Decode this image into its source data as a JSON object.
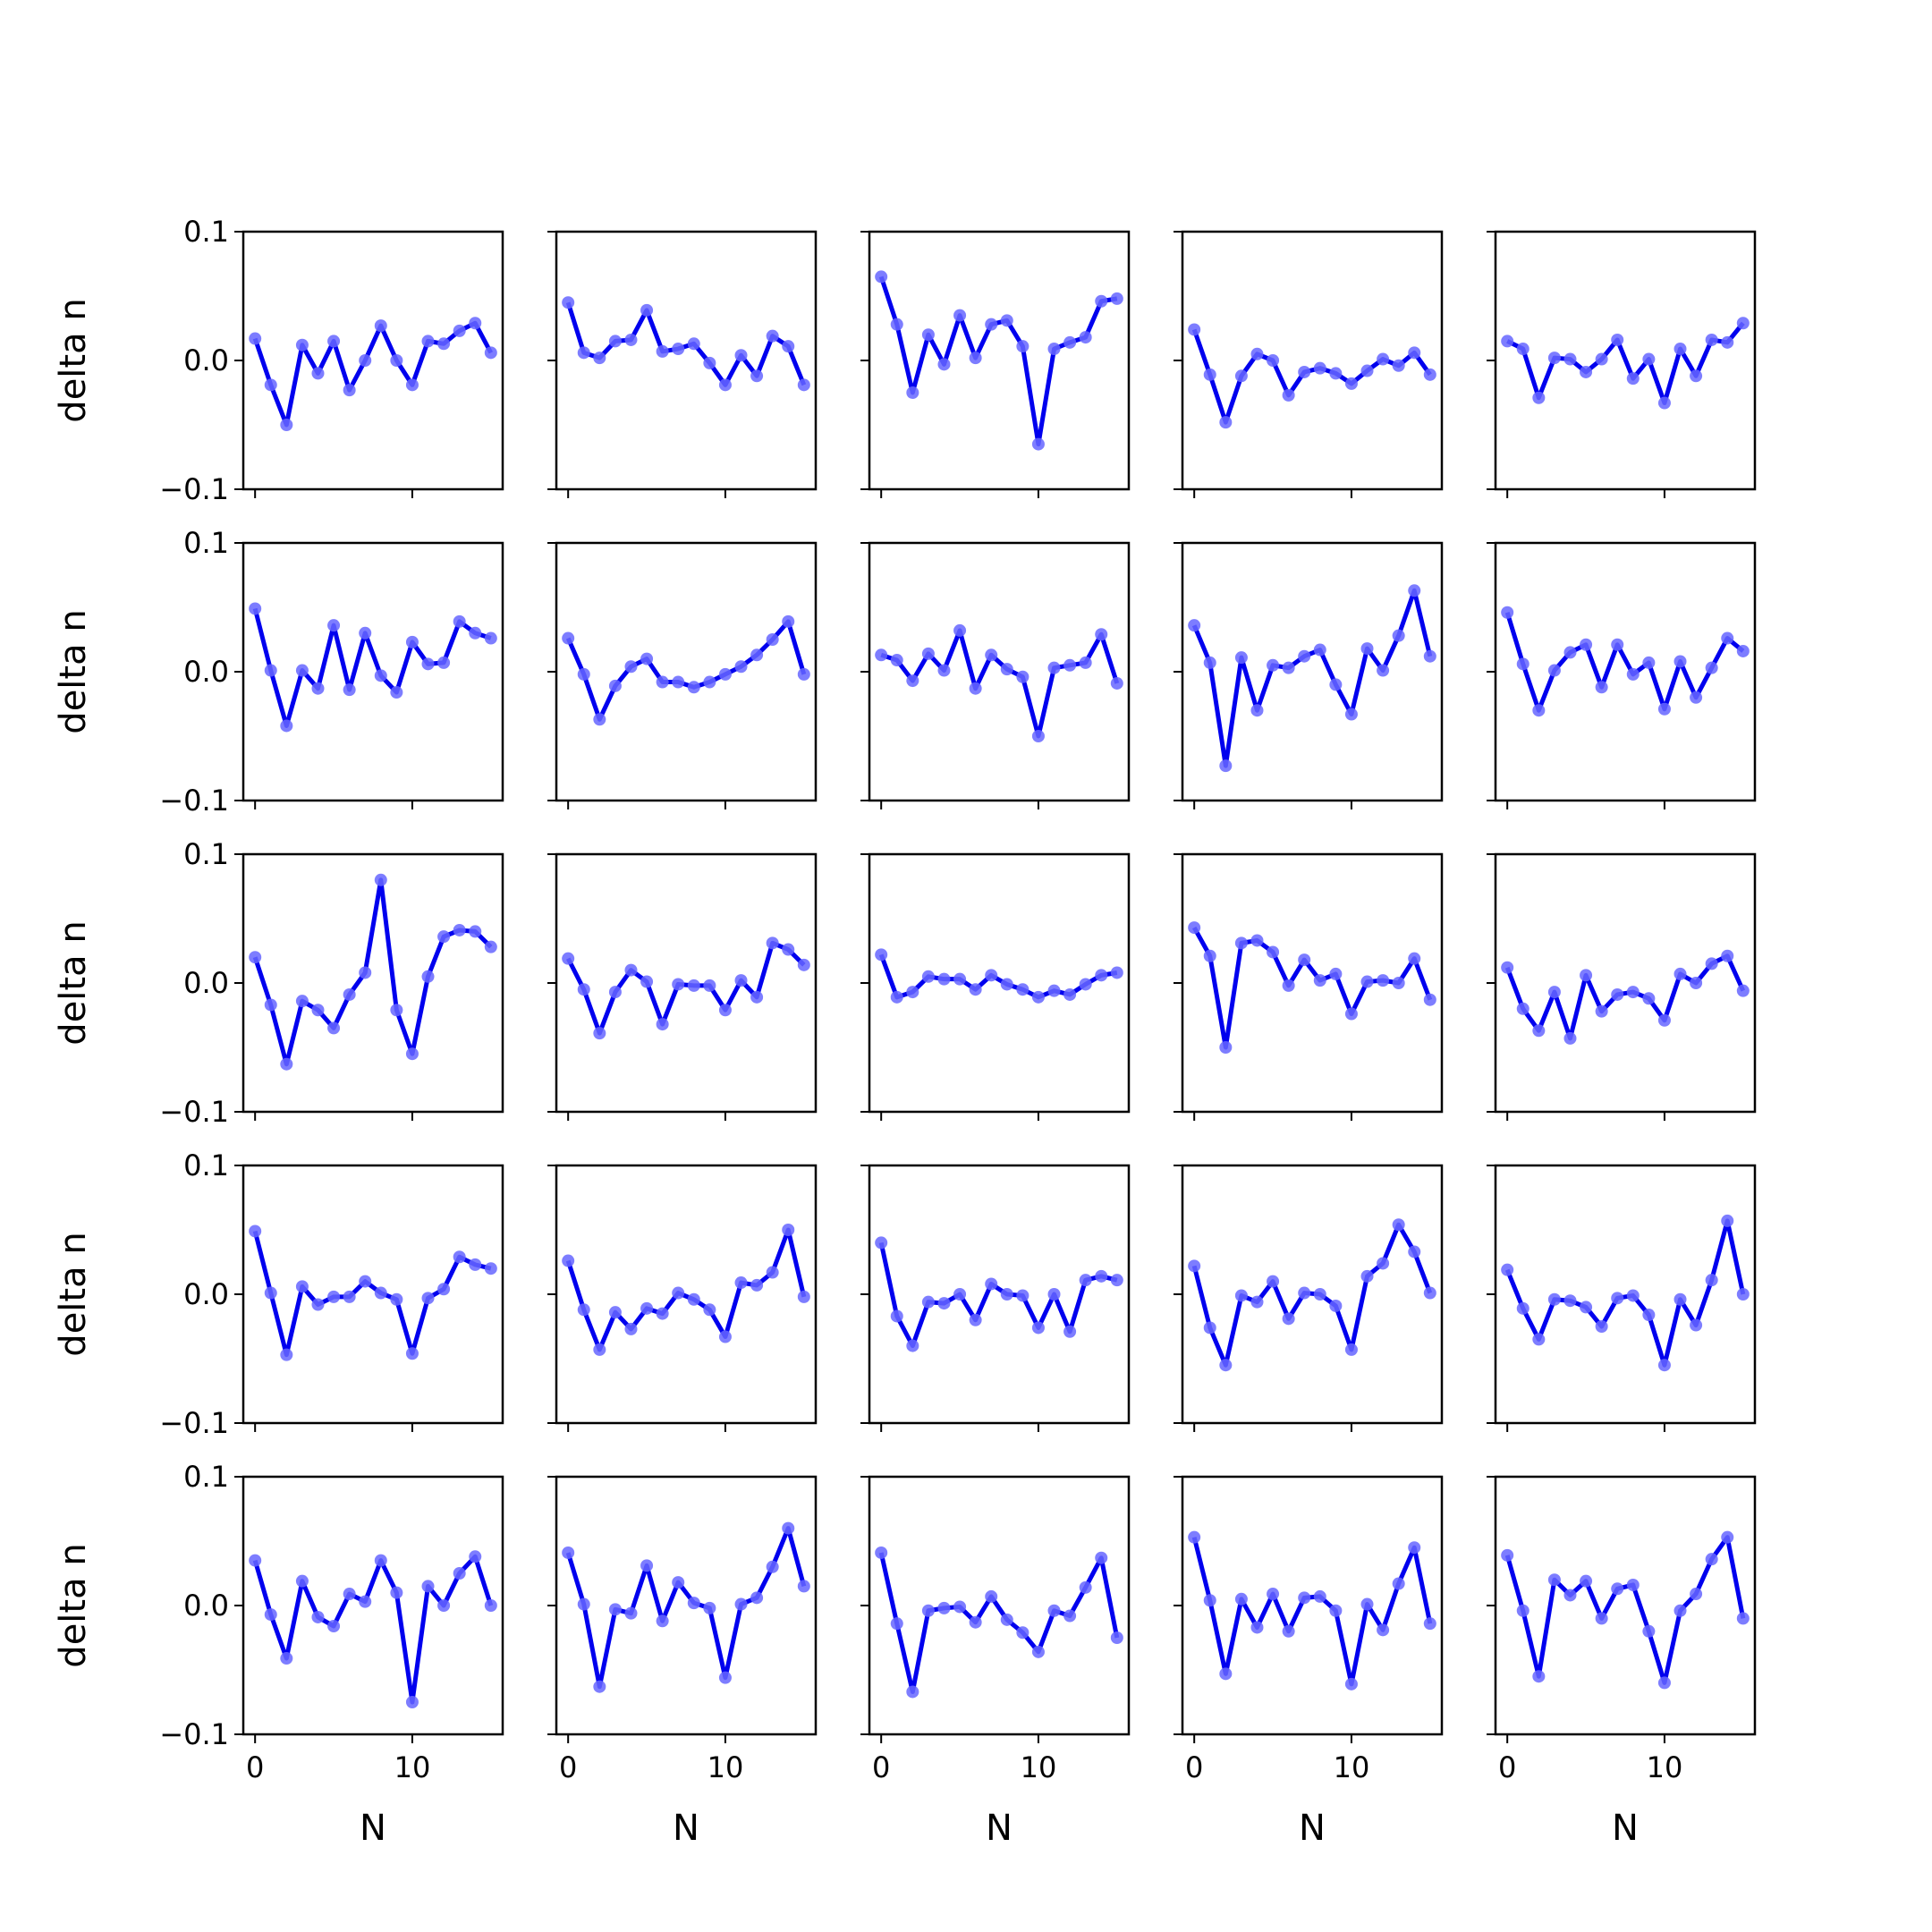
{
  "chart_data": {
    "type": "line",
    "layout": "5x5 grid of subplots, shared axes",
    "xlabel": "N",
    "ylabel": "delta n",
    "xlim": [
      -0.75,
      15.75
    ],
    "ylim": [
      -0.1,
      0.1
    ],
    "x_ticks": [
      0,
      10
    ],
    "x_tick_labels": [
      "0",
      "10"
    ],
    "y_ticks": [
      -0.1,
      0.0,
      0.1
    ],
    "y_tick_labels": [
      "−0.1",
      "0.0",
      "0.1"
    ],
    "x": [
      0,
      1,
      2,
      3,
      4,
      5,
      6,
      7,
      8,
      9,
      10,
      11,
      12,
      13,
      14,
      15
    ],
    "line_color": "#0000ee",
    "marker_color": "#6666ff",
    "grid": false,
    "subplots": [
      [
        0.017,
        -0.019,
        -0.05,
        0.012,
        -0.01,
        0.015,
        -0.023,
        0.0,
        0.027,
        0.0,
        -0.019,
        0.015,
        0.013,
        0.023,
        0.029,
        0.006
      ],
      [
        0.045,
        0.006,
        0.002,
        0.015,
        0.016,
        0.039,
        0.007,
        0.009,
        0.013,
        -0.002,
        -0.019,
        0.004,
        -0.012,
        0.019,
        0.011,
        -0.019
      ],
      [
        0.065,
        0.028,
        -0.025,
        0.02,
        -0.003,
        0.035,
        0.002,
        0.028,
        0.031,
        0.011,
        -0.065,
        0.009,
        0.014,
        0.018,
        0.046,
        0.048
      ],
      [
        0.024,
        -0.011,
        -0.048,
        -0.012,
        0.005,
        0.0,
        -0.027,
        -0.009,
        -0.006,
        -0.01,
        -0.018,
        -0.008,
        0.001,
        -0.004,
        0.006,
        -0.011
      ],
      [
        0.015,
        0.009,
        -0.029,
        0.002,
        0.001,
        -0.009,
        0.001,
        0.016,
        -0.014,
        0.001,
        -0.033,
        0.009,
        -0.012,
        0.016,
        0.014,
        0.029
      ],
      [
        0.049,
        0.001,
        -0.042,
        0.001,
        -0.013,
        0.036,
        -0.014,
        0.03,
        -0.003,
        -0.016,
        0.023,
        0.006,
        0.007,
        0.039,
        0.03,
        0.026
      ],
      [
        0.026,
        -0.002,
        -0.037,
        -0.011,
        0.004,
        0.01,
        -0.008,
        -0.008,
        -0.012,
        -0.008,
        -0.002,
        0.004,
        0.013,
        0.025,
        0.039,
        -0.002
      ],
      [
        0.013,
        0.009,
        -0.007,
        0.014,
        0.001,
        0.032,
        -0.013,
        0.013,
        0.002,
        -0.004,
        -0.05,
        0.003,
        0.005,
        0.007,
        0.029,
        -0.009
      ],
      [
        0.036,
        0.007,
        -0.073,
        0.011,
        -0.03,
        0.005,
        0.003,
        0.012,
        0.017,
        -0.01,
        -0.033,
        0.018,
        0.001,
        0.028,
        0.063,
        0.012
      ],
      [
        0.046,
        0.006,
        -0.03,
        0.001,
        0.015,
        0.021,
        -0.012,
        0.021,
        -0.002,
        0.007,
        -0.029,
        0.008,
        -0.02,
        0.003,
        0.026,
        0.016
      ],
      [
        0.02,
        -0.017,
        -0.063,
        -0.014,
        -0.021,
        -0.035,
        -0.009,
        0.008,
        0.08,
        -0.021,
        -0.055,
        0.005,
        0.036,
        0.041,
        0.04,
        0.028
      ],
      [
        0.019,
        -0.005,
        -0.039,
        -0.007,
        0.01,
        0.001,
        -0.032,
        -0.001,
        -0.002,
        -0.002,
        -0.021,
        0.002,
        -0.011,
        0.031,
        0.026,
        0.014
      ],
      [
        0.022,
        -0.011,
        -0.007,
        0.005,
        0.003,
        0.003,
        -0.005,
        0.006,
        -0.001,
        -0.005,
        -0.011,
        -0.006,
        -0.009,
        -0.001,
        0.006,
        0.008
      ],
      [
        0.043,
        0.021,
        -0.05,
        0.031,
        0.033,
        0.024,
        -0.002,
        0.018,
        0.002,
        0.007,
        -0.024,
        0.001,
        0.002,
        0.0,
        0.019,
        -0.013
      ],
      [
        0.012,
        -0.02,
        -0.037,
        -0.007,
        -0.043,
        0.006,
        -0.022,
        -0.009,
        -0.007,
        -0.012,
        -0.029,
        0.007,
        0.0,
        0.015,
        0.021,
        -0.006
      ],
      [
        0.049,
        0.001,
        -0.047,
        0.006,
        -0.008,
        -0.002,
        -0.002,
        0.01,
        0.001,
        -0.004,
        -0.046,
        -0.003,
        0.004,
        0.029,
        0.023,
        0.02
      ],
      [
        0.026,
        -0.012,
        -0.043,
        -0.014,
        -0.027,
        -0.011,
        -0.015,
        0.001,
        -0.004,
        -0.012,
        -0.033,
        0.009,
        0.007,
        0.017,
        0.05,
        -0.002
      ],
      [
        0.04,
        -0.017,
        -0.04,
        -0.006,
        -0.007,
        0.0,
        -0.02,
        0.008,
        0.0,
        -0.001,
        -0.026,
        0.0,
        -0.029,
        0.011,
        0.014,
        0.011
      ],
      [
        0.022,
        -0.026,
        -0.055,
        -0.001,
        -0.006,
        0.01,
        -0.019,
        0.001,
        0.0,
        -0.009,
        -0.043,
        0.014,
        0.024,
        0.054,
        0.033,
        0.001
      ],
      [
        0.019,
        -0.011,
        -0.035,
        -0.004,
        -0.005,
        -0.01,
        -0.025,
        -0.003,
        -0.001,
        -0.016,
        -0.055,
        -0.004,
        -0.024,
        0.011,
        0.057,
        0.0
      ],
      [
        0.035,
        -0.007,
        -0.041,
        0.019,
        -0.009,
        -0.016,
        0.009,
        0.003,
        0.035,
        0.01,
        -0.075,
        0.015,
        0.0,
        0.025,
        0.038,
        0.0
      ],
      [
        0.041,
        0.001,
        -0.063,
        -0.003,
        -0.006,
        0.031,
        -0.012,
        0.018,
        0.002,
        -0.002,
        -0.056,
        0.001,
        0.006,
        0.03,
        0.06,
        0.015
      ],
      [
        0.041,
        -0.014,
        -0.067,
        -0.004,
        -0.002,
        -0.001,
        -0.013,
        0.007,
        -0.011,
        -0.021,
        -0.036,
        -0.004,
        -0.008,
        0.014,
        0.037,
        -0.025
      ],
      [
        0.053,
        0.004,
        -0.053,
        0.005,
        -0.017,
        0.009,
        -0.02,
        0.006,
        0.007,
        -0.004,
        -0.061,
        0.001,
        -0.019,
        0.017,
        0.045,
        -0.014
      ],
      [
        0.039,
        -0.004,
        -0.055,
        0.02,
        0.008,
        0.019,
        -0.01,
        0.013,
        0.016,
        -0.02,
        -0.06,
        -0.004,
        0.009,
        0.036,
        0.053,
        -0.01
      ]
    ]
  }
}
